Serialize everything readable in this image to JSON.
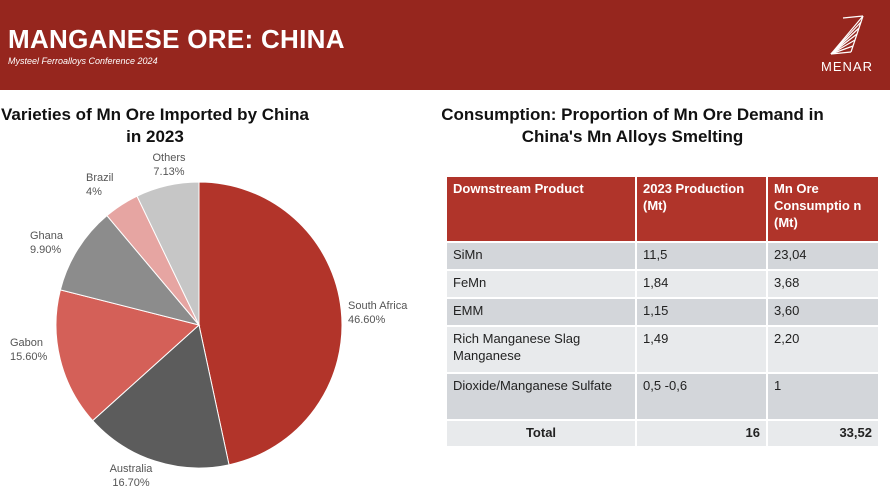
{
  "header": {
    "title": "MANGANESE ORE: CHINA",
    "subtitle": "Mysteel Ferroalloys Conference 2024",
    "logo_text": "MENAR"
  },
  "colors": {
    "header_bg": "#96261e",
    "table_header_bg": "#b0342a"
  },
  "chart_data": {
    "type": "pie",
    "title": "Varieties of Mn Ore Imported by China in 2023",
    "slices": [
      {
        "name": "South Africa",
        "value": 46.6,
        "label": "46.60%",
        "color": "#b2342a"
      },
      {
        "name": "Australia",
        "value": 16.7,
        "label": "16.70%",
        "color": "#5c5c5c"
      },
      {
        "name": "Gabon",
        "value": 15.6,
        "label": "15.60%",
        "color": "#d46058"
      },
      {
        "name": "Ghana",
        "value": 9.9,
        "label": "9.90%",
        "color": "#8c8c8c"
      },
      {
        "name": "Brazil",
        "value": 4,
        "label": "4%",
        "color": "#e6a5a2"
      },
      {
        "name": "Others",
        "value": 7.13,
        "label": "7.13%",
        "color": "#c6c6c6"
      }
    ]
  },
  "table": {
    "title": "Consumption: Proportion of Mn Ore Demand in China's Mn Alloys Smelting",
    "headers": [
      "Downstream Product",
      "2023 Production (Mt)",
      "Mn Ore Consumptio n (Mt)"
    ],
    "rows": [
      [
        "SiMn",
        "11,5",
        "23,04"
      ],
      [
        "FeMn",
        "1,84",
        "3,68"
      ],
      [
        "EMM",
        "1,15",
        "3,60"
      ],
      [
        "Rich Manganese Slag Manganese",
        "1,49",
        "2,20"
      ],
      [
        "Dioxide/Manganese Sulfate",
        "0,5 -0,6",
        "1"
      ]
    ],
    "total": [
      "Total",
      "16",
      "33,52"
    ]
  }
}
